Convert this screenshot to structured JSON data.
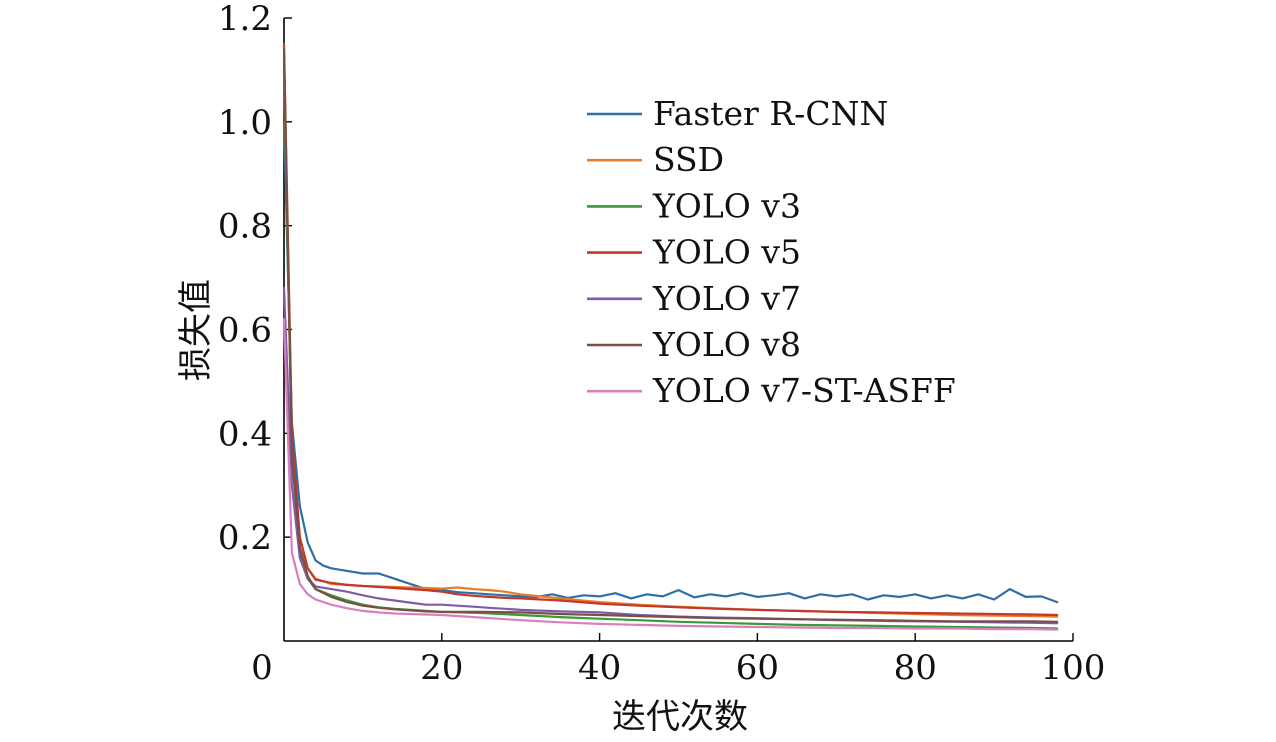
{
  "chart_data": {
    "type": "line",
    "xlabel": "迭代次数",
    "ylabel": "损失值",
    "xlim": [
      0,
      100
    ],
    "ylim": [
      0,
      1.2
    ],
    "x_ticks": [
      "0",
      "20",
      "40",
      "60",
      "80",
      "100"
    ],
    "y_ticks": [
      "0.2",
      "0.4",
      "0.6",
      "0.8",
      "1.0",
      "1.2"
    ],
    "legend_position": "upper-center",
    "grid": false,
    "series": [
      {
        "name": "Faster R-CNN",
        "color": "#2e6fa7",
        "x": [
          0,
          1,
          2,
          3,
          4,
          5,
          6,
          8,
          10,
          12,
          14,
          16,
          18,
          20,
          22,
          24,
          26,
          28,
          30,
          32,
          34,
          36,
          38,
          40,
          42,
          44,
          46,
          48,
          50,
          52,
          54,
          56,
          58,
          60,
          62,
          64,
          66,
          68,
          70,
          72,
          74,
          76,
          78,
          80,
          82,
          84,
          86,
          88,
          90,
          92,
          94,
          96,
          98
        ],
        "y": [
          1.0,
          0.42,
          0.26,
          0.19,
          0.155,
          0.145,
          0.14,
          0.135,
          0.13,
          0.13,
          0.12,
          0.11,
          0.1,
          0.098,
          0.094,
          0.092,
          0.09,
          0.088,
          0.086,
          0.085,
          0.09,
          0.083,
          0.088,
          0.086,
          0.092,
          0.082,
          0.09,
          0.086,
          0.098,
          0.084,
          0.09,
          0.086,
          0.092,
          0.085,
          0.088,
          0.092,
          0.082,
          0.09,
          0.086,
          0.09,
          0.08,
          0.088,
          0.085,
          0.09,
          0.082,
          0.088,
          0.082,
          0.09,
          0.08,
          0.1,
          0.085,
          0.086,
          0.075
        ]
      },
      {
        "name": "SSD",
        "color": "#e97c2b",
        "x": [
          0,
          1,
          2,
          3,
          4,
          6,
          8,
          10,
          12,
          14,
          16,
          18,
          20,
          22,
          24,
          26,
          28,
          30,
          35,
          40,
          45,
          50,
          55,
          60,
          65,
          70,
          75,
          80,
          85,
          90,
          95,
          98
        ],
        "y": [
          1.1,
          0.38,
          0.2,
          0.14,
          0.12,
          0.11,
          0.108,
          0.106,
          0.105,
          0.104,
          0.103,
          0.102,
          0.101,
          0.103,
          0.1,
          0.098,
          0.095,
          0.09,
          0.082,
          0.075,
          0.07,
          0.066,
          0.063,
          0.06,
          0.058,
          0.056,
          0.054,
          0.052,
          0.05,
          0.049,
          0.048,
          0.047
        ]
      },
      {
        "name": "YOLO v3",
        "color": "#3a9a3a",
        "x": [
          0,
          1,
          2,
          3,
          4,
          6,
          8,
          10,
          12,
          14,
          16,
          18,
          20,
          25,
          30,
          35,
          40,
          45,
          50,
          55,
          60,
          65,
          70,
          75,
          80,
          85,
          90,
          95,
          98
        ],
        "y": [
          1.1,
          0.36,
          0.17,
          0.12,
          0.1,
          0.088,
          0.078,
          0.07,
          0.065,
          0.062,
          0.06,
          0.058,
          0.056,
          0.054,
          0.05,
          0.046,
          0.043,
          0.04,
          0.037,
          0.035,
          0.033,
          0.031,
          0.03,
          0.029,
          0.028,
          0.027,
          0.026,
          0.025,
          0.024
        ]
      },
      {
        "name": "YOLO v5",
        "color": "#c0392b",
        "x": [
          0,
          1,
          2,
          3,
          4,
          6,
          8,
          10,
          12,
          14,
          16,
          18,
          20,
          22,
          24,
          26,
          28,
          30,
          35,
          40,
          45,
          50,
          55,
          60,
          65,
          70,
          75,
          80,
          85,
          90,
          95,
          98
        ],
        "y": [
          1.15,
          0.4,
          0.2,
          0.14,
          0.118,
          0.112,
          0.108,
          0.106,
          0.104,
          0.102,
          0.1,
          0.098,
          0.095,
          0.09,
          0.087,
          0.085,
          0.083,
          0.082,
          0.078,
          0.072,
          0.068,
          0.065,
          0.062,
          0.06,
          0.058,
          0.056,
          0.055,
          0.054,
          0.053,
          0.052,
          0.051,
          0.05
        ]
      },
      {
        "name": "YOLO v7",
        "color": "#7e5ca8",
        "x": [
          0,
          1,
          2,
          3,
          4,
          6,
          8,
          10,
          12,
          14,
          16,
          18,
          20,
          22,
          24,
          26,
          28,
          30,
          35,
          40,
          45,
          50,
          55,
          60,
          65,
          70,
          75,
          80,
          85,
          90,
          95,
          98
        ],
        "y": [
          0.68,
          0.3,
          0.16,
          0.12,
          0.105,
          0.1,
          0.095,
          0.088,
          0.082,
          0.078,
          0.074,
          0.07,
          0.07,
          0.068,
          0.066,
          0.064,
          0.062,
          0.06,
          0.057,
          0.055,
          0.05,
          0.047,
          0.045,
          0.044,
          0.042,
          0.04,
          0.039,
          0.038,
          0.037,
          0.036,
          0.035,
          0.034
        ]
      },
      {
        "name": "YOLO v8",
        "color": "#7a4f45",
        "x": [
          0,
          1,
          2,
          3,
          4,
          6,
          8,
          10,
          12,
          14,
          16,
          18,
          20,
          25,
          30,
          35,
          40,
          45,
          50,
          55,
          60,
          65,
          70,
          75,
          80,
          85,
          90,
          95,
          98
        ],
        "y": [
          1.14,
          0.36,
          0.18,
          0.125,
          0.1,
          0.085,
          0.075,
          0.068,
          0.064,
          0.061,
          0.059,
          0.057,
          0.056,
          0.056,
          0.055,
          0.052,
          0.05,
          0.048,
          0.046,
          0.044,
          0.043,
          0.042,
          0.041,
          0.04,
          0.039,
          0.038,
          0.038,
          0.038,
          0.037
        ]
      },
      {
        "name": "YOLO v7-ST-ASFF",
        "color": "#d880bd",
        "x": [
          0,
          1,
          2,
          3,
          4,
          6,
          8,
          10,
          12,
          14,
          16,
          18,
          20,
          25,
          30,
          35,
          40,
          45,
          50,
          55,
          60,
          65,
          70,
          75,
          80,
          85,
          90,
          95,
          98
        ],
        "y": [
          0.62,
          0.17,
          0.11,
          0.09,
          0.08,
          0.07,
          0.063,
          0.058,
          0.055,
          0.053,
          0.052,
          0.051,
          0.05,
          0.045,
          0.04,
          0.036,
          0.033,
          0.031,
          0.029,
          0.028,
          0.027,
          0.026,
          0.025,
          0.025,
          0.024,
          0.024,
          0.023,
          0.023,
          0.022
        ]
      }
    ]
  }
}
